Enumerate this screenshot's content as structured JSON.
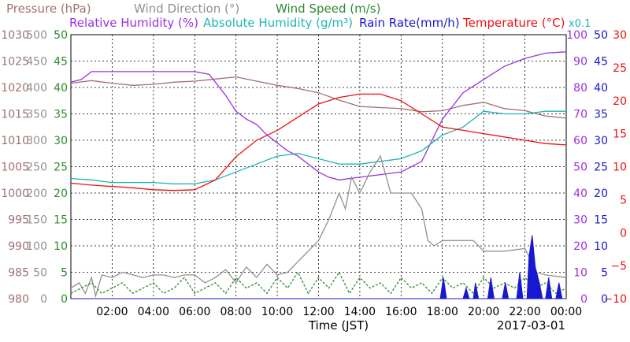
{
  "chart_data": {
    "type": "line",
    "legend": [
      {
        "label": "Pressure (hPa)",
        "color": "#a07070"
      },
      {
        "label": "Wind Direction (°)",
        "color": "#909090"
      },
      {
        "label": "Wind Speed (m/s)",
        "color": "#2e8b2e"
      },
      {
        "label": "Relative Humidity (%)",
        "color": "#9b30e0"
      },
      {
        "label": "Absolute Humidity (g/m³)",
        "color": "#1fb5b5"
      },
      {
        "label": "Rain Rate(mm/h)",
        "color": "#1818d0"
      },
      {
        "label": "Temperature (°C)",
        "color": "#ee1010"
      }
    ],
    "abs_humidity_scale_note": "x0.1",
    "xlabel": "Time (JST)",
    "date": "2017-03-01",
    "x_ticks": [
      "02:00",
      "04:00",
      "06:00",
      "08:00",
      "10:00",
      "12:00",
      "14:00",
      "16:00",
      "18:00",
      "20:00",
      "22:00",
      "00:00"
    ],
    "x_range_hours": [
      0,
      24
    ],
    "grid": true,
    "axes": {
      "pressure": {
        "ticks": [
          "1030",
          "1025",
          "1020",
          "1015",
          "1010",
          "1005",
          "1000",
          "995",
          "990",
          "985",
          "980"
        ],
        "range": [
          980,
          1030
        ],
        "color": "#a07070"
      },
      "wind_direction": {
        "ticks": [
          "500",
          "450",
          "400",
          "350",
          "300",
          "250",
          "200",
          "150",
          "100",
          "50",
          "0"
        ],
        "range": [
          0,
          500
        ],
        "color": "#909090"
      },
      "wind_speed": {
        "ticks": [
          "50",
          "45",
          "40",
          "35",
          "30",
          "25",
          "20",
          "15",
          "10",
          "5",
          "0"
        ],
        "range": [
          0,
          50
        ],
        "color": "#2e8b2e"
      },
      "relative_humidity": {
        "ticks": [
          "100",
          "90",
          "80",
          "70",
          "60",
          "50",
          "40",
          "30",
          "20",
          "10",
          "0"
        ],
        "range": [
          0,
          100
        ],
        "color": "#9b30e0"
      },
      "rain_rate": {
        "ticks": [
          "50",
          "45",
          "40",
          "35",
          "30",
          "25",
          "20",
          "15",
          "10",
          "5",
          "0"
        ],
        "range": [
          0,
          50
        ],
        "color": "#1818d0"
      },
      "temperature": {
        "ticks": [
          "30",
          "25",
          "20",
          "15",
          "10",
          "5",
          "0",
          "−5",
          "−10"
        ],
        "range": [
          -10,
          30
        ],
        "color": "#ee1010"
      }
    },
    "series": [
      {
        "name": "Pressure (hPa)",
        "axis": "pressure",
        "color": "#a07070",
        "points": [
          [
            0,
            1020.8
          ],
          [
            1,
            1021.3
          ],
          [
            2,
            1020.8
          ],
          [
            3,
            1020.4
          ],
          [
            4,
            1020.6
          ],
          [
            5,
            1021
          ],
          [
            6,
            1021.2
          ],
          [
            7,
            1021.6
          ],
          [
            8,
            1022
          ],
          [
            9,
            1021.2
          ],
          [
            10,
            1020.4
          ],
          [
            11,
            1019.8
          ],
          [
            12,
            1019
          ],
          [
            13,
            1017.6
          ],
          [
            14,
            1016.4
          ],
          [
            15,
            1016.2
          ],
          [
            16,
            1016
          ],
          [
            17,
            1015.4
          ],
          [
            18,
            1015.6
          ],
          [
            19,
            1016.6
          ],
          [
            20,
            1017.2
          ],
          [
            21,
            1016
          ],
          [
            22,
            1015.6
          ],
          [
            23,
            1014.6
          ],
          [
            24,
            1014.2
          ]
        ]
      },
      {
        "name": "Relative Humidity (%)",
        "axis": "relative_humidity",
        "color": "#9b30e0",
        "points": [
          [
            0,
            82
          ],
          [
            0.5,
            83
          ],
          [
            1,
            86
          ],
          [
            2,
            86
          ],
          [
            3,
            86
          ],
          [
            4,
            86
          ],
          [
            5,
            86
          ],
          [
            6,
            86
          ],
          [
            6.7,
            85
          ],
          [
            7,
            82
          ],
          [
            7.5,
            77
          ],
          [
            8,
            71
          ],
          [
            8.5,
            68
          ],
          [
            9,
            66
          ],
          [
            9.5,
            62
          ],
          [
            10,
            59
          ],
          [
            10.5,
            56
          ],
          [
            11,
            54
          ],
          [
            11.5,
            51
          ],
          [
            12,
            48
          ],
          [
            12.5,
            46
          ],
          [
            13,
            45
          ],
          [
            14,
            46
          ],
          [
            15,
            47
          ],
          [
            16,
            48
          ],
          [
            17,
            52
          ],
          [
            17.5,
            60
          ],
          [
            18,
            68
          ],
          [
            18.5,
            73
          ],
          [
            19,
            78
          ],
          [
            20,
            83
          ],
          [
            21,
            88
          ],
          [
            22,
            91
          ],
          [
            23,
            93
          ],
          [
            24,
            93.5
          ]
        ]
      },
      {
        "name": "Absolute Humidity (g/m³)",
        "axis": "relative_humidity",
        "color": "#1fb5b5",
        "points": [
          [
            0,
            45.5
          ],
          [
            1,
            45
          ],
          [
            2,
            44
          ],
          [
            3,
            44
          ],
          [
            4,
            44
          ],
          [
            5,
            43.5
          ],
          [
            6,
            43.5
          ],
          [
            7,
            45
          ],
          [
            8,
            48
          ],
          [
            9,
            51
          ],
          [
            10,
            54
          ],
          [
            11,
            55
          ],
          [
            12,
            53
          ],
          [
            13,
            51
          ],
          [
            14,
            51
          ],
          [
            15,
            52
          ],
          [
            16,
            53
          ],
          [
            17,
            56
          ],
          [
            18,
            62
          ],
          [
            19,
            65
          ],
          [
            20,
            71
          ],
          [
            21,
            70
          ],
          [
            22,
            70
          ],
          [
            23,
            71
          ],
          [
            24,
            71
          ]
        ]
      },
      {
        "name": "Temperature (°C)",
        "axis": "temperature",
        "color": "#ee1010",
        "points": [
          [
            0,
            7.5
          ],
          [
            1,
            7.2
          ],
          [
            2,
            7
          ],
          [
            3,
            6.8
          ],
          [
            4,
            6.5
          ],
          [
            5,
            6.4
          ],
          [
            6,
            6.5
          ],
          [
            7,
            8
          ],
          [
            8,
            11.5
          ],
          [
            9,
            14
          ],
          [
            10,
            15.5
          ],
          [
            11,
            17.5
          ],
          [
            12,
            19.5
          ],
          [
            13,
            20.5
          ],
          [
            14,
            21
          ],
          [
            15,
            21
          ],
          [
            16,
            20
          ],
          [
            17,
            18
          ],
          [
            18,
            16
          ],
          [
            19,
            15.5
          ],
          [
            20,
            15
          ],
          [
            21,
            14.5
          ],
          [
            22,
            14
          ],
          [
            23,
            13.5
          ],
          [
            24,
            13.3
          ]
        ]
      },
      {
        "name": "Wind Direction (°)",
        "axis": "wind_direction",
        "color": "#909090",
        "points": [
          [
            0,
            20
          ],
          [
            0.4,
            30
          ],
          [
            0.7,
            10
          ],
          [
            1,
            40
          ],
          [
            1.2,
            5
          ],
          [
            1.5,
            45
          ],
          [
            2,
            40
          ],
          [
            2.5,
            50
          ],
          [
            3,
            45
          ],
          [
            3.5,
            40
          ],
          [
            4,
            45
          ],
          [
            4.5,
            45
          ],
          [
            5,
            40
          ],
          [
            5.5,
            45
          ],
          [
            6,
            45
          ],
          [
            6.5,
            30
          ],
          [
            7,
            40
          ],
          [
            7.5,
            55
          ],
          [
            8,
            30
          ],
          [
            8.5,
            60
          ],
          [
            9,
            40
          ],
          [
            9.5,
            65
          ],
          [
            10,
            45
          ],
          [
            10.5,
            50
          ],
          [
            11,
            70
          ],
          [
            11.5,
            90
          ],
          [
            12,
            110
          ],
          [
            12.5,
            150
          ],
          [
            13,
            200
          ],
          [
            13.3,
            170
          ],
          [
            13.6,
            230
          ],
          [
            14,
            200
          ],
          [
            14.5,
            240
          ],
          [
            15,
            270
          ],
          [
            15.5,
            200
          ],
          [
            16,
            200
          ],
          [
            16.5,
            200
          ],
          [
            17,
            170
          ],
          [
            17.3,
            110
          ],
          [
            17.6,
            100
          ],
          [
            18,
            110
          ],
          [
            18.5,
            110
          ],
          [
            19,
            110
          ],
          [
            19.5,
            110
          ],
          [
            20,
            90
          ],
          [
            20.5,
            90
          ],
          [
            21,
            90
          ],
          [
            22,
            95
          ],
          [
            22.2,
            80
          ],
          [
            22.5,
            50
          ],
          [
            23,
            45
          ],
          [
            24,
            40
          ]
        ]
      },
      {
        "name": "Wind Speed (m/s)",
        "axis": "wind_speed",
        "color": "#2e8b2e",
        "points": [
          [
            0,
            1
          ],
          [
            0.5,
            2
          ],
          [
            1,
            3
          ],
          [
            1.5,
            1
          ],
          [
            2,
            2
          ],
          [
            2.5,
            3
          ],
          [
            3,
            1
          ],
          [
            3.5,
            2
          ],
          [
            4,
            3
          ],
          [
            4.5,
            1
          ],
          [
            5,
            2
          ],
          [
            5.5,
            4
          ],
          [
            6,
            1
          ],
          [
            6.5,
            2
          ],
          [
            7,
            3
          ],
          [
            7.5,
            1
          ],
          [
            8,
            4
          ],
          [
            8.5,
            2
          ],
          [
            9,
            3
          ],
          [
            9.5,
            1
          ],
          [
            10,
            4
          ],
          [
            10.5,
            2
          ],
          [
            11,
            5
          ],
          [
            11.5,
            1
          ],
          [
            12,
            4
          ],
          [
            12.5,
            2
          ],
          [
            13,
            5
          ],
          [
            13.5,
            1
          ],
          [
            14,
            4
          ],
          [
            14.5,
            2
          ],
          [
            15,
            3
          ],
          [
            15.5,
            1
          ],
          [
            16,
            4
          ],
          [
            16.5,
            2
          ],
          [
            17,
            3
          ],
          [
            17.5,
            1
          ],
          [
            18,
            4
          ],
          [
            18.5,
            2
          ],
          [
            19,
            3
          ],
          [
            19.5,
            1
          ],
          [
            20,
            4
          ],
          [
            20.5,
            2
          ],
          [
            21,
            3
          ],
          [
            21.5,
            2
          ],
          [
            22,
            4
          ],
          [
            22.5,
            2
          ],
          [
            23,
            3
          ],
          [
            23.5,
            1
          ],
          [
            24,
            2
          ]
        ]
      },
      {
        "name": "Rain Rate(mm/h)",
        "axis": "rain_rate",
        "color": "#1818d0",
        "points": [
          [
            0,
            0
          ],
          [
            17.9,
            0
          ],
          [
            18.05,
            4
          ],
          [
            18.2,
            0
          ],
          [
            19,
            0
          ],
          [
            19.15,
            2
          ],
          [
            19.3,
            0
          ],
          [
            19.5,
            0
          ],
          [
            19.6,
            3
          ],
          [
            19.75,
            0
          ],
          [
            20.2,
            0
          ],
          [
            20.35,
            4
          ],
          [
            20.5,
            0
          ],
          [
            20.9,
            0
          ],
          [
            21.05,
            3
          ],
          [
            21.2,
            0
          ],
          [
            21.6,
            0
          ],
          [
            21.75,
            5
          ],
          [
            21.9,
            0
          ],
          [
            22.1,
            0
          ],
          [
            22.2,
            8
          ],
          [
            22.35,
            12
          ],
          [
            22.5,
            6
          ],
          [
            22.7,
            3
          ],
          [
            22.85,
            0
          ],
          [
            23,
            0
          ],
          [
            23.15,
            4
          ],
          [
            23.3,
            0
          ],
          [
            23.5,
            0
          ],
          [
            23.65,
            3
          ],
          [
            23.8,
            0
          ],
          [
            24,
            0
          ]
        ]
      }
    ]
  }
}
